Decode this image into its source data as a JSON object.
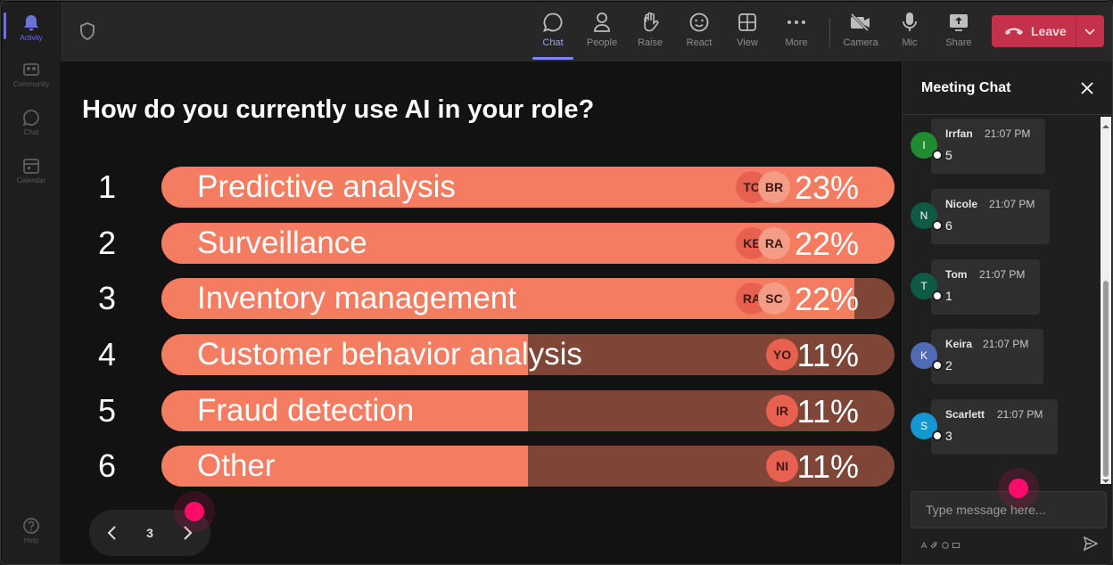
{
  "rail": {
    "items": [
      {
        "label": "Activity",
        "icon": "bell-icon",
        "active": true
      },
      {
        "label": "Community",
        "icon": "community-icon"
      },
      {
        "label": "Chat",
        "icon": "chat-icon"
      },
      {
        "label": "Calendar",
        "icon": "calendar-icon"
      },
      {
        "label": "Help",
        "icon": "help-icon"
      }
    ]
  },
  "toolbar": {
    "chat": "Chat",
    "people": "People",
    "raise": "Raise",
    "react": "React",
    "view": "View",
    "more": "More",
    "camera": "Camera",
    "mic": "Mic",
    "share": "Share",
    "leave": "Leave",
    "accent": "#7f85f5",
    "leave_color": "#c4314b"
  },
  "poll": {
    "question": "How do you currently use AI in your role?",
    "options": [
      {
        "num": "1",
        "label": "Predictive analysis",
        "percent": "23%",
        "fill": 1.0,
        "avatars": [
          "TO",
          "BR"
        ]
      },
      {
        "num": "2",
        "label": "Surveillance",
        "percent": "22%",
        "fill": 1.0,
        "avatars": [
          "KE",
          "RA"
        ]
      },
      {
        "num": "3",
        "label": "Inventory management",
        "percent": "22%",
        "fill": 0.945,
        "avatars": [
          "RA",
          "SC"
        ]
      },
      {
        "num": "4",
        "label": "Customer behavior analysis",
        "percent": "11%",
        "fill": 0.5,
        "avatars": [
          "YO"
        ]
      },
      {
        "num": "5",
        "label": "Fraud detection",
        "percent": "11%",
        "fill": 0.5,
        "avatars": [
          "IR"
        ]
      },
      {
        "num": "6",
        "label": "Other",
        "percent": "11%",
        "fill": 0.5,
        "avatars": [
          "NI"
        ]
      }
    ],
    "page": "3",
    "bar_color": "#f47c60",
    "bar_track_color": "#7f4537"
  },
  "chat": {
    "title": "Meeting Chat",
    "placeholder": "Type message here...",
    "messages": [
      {
        "initial": "I",
        "author": "Irrfan",
        "time": "21:07 PM",
        "body": "5",
        "color": "#1e8c2f"
      },
      {
        "initial": "N",
        "author": "Nicole",
        "time": "21:07 PM",
        "body": "6",
        "color": "#0f5a45"
      },
      {
        "initial": "T",
        "author": "Tom",
        "time": "21:07 PM",
        "body": "1",
        "color": "#0f5a45"
      },
      {
        "initial": "K",
        "author": "Keira",
        "time": "21:07 PM",
        "body": "2",
        "color": "#4f6bb3"
      },
      {
        "initial": "S",
        "author": "Scarlett",
        "time": "21:07 PM",
        "body": "3",
        "color": "#1597d4"
      }
    ]
  }
}
